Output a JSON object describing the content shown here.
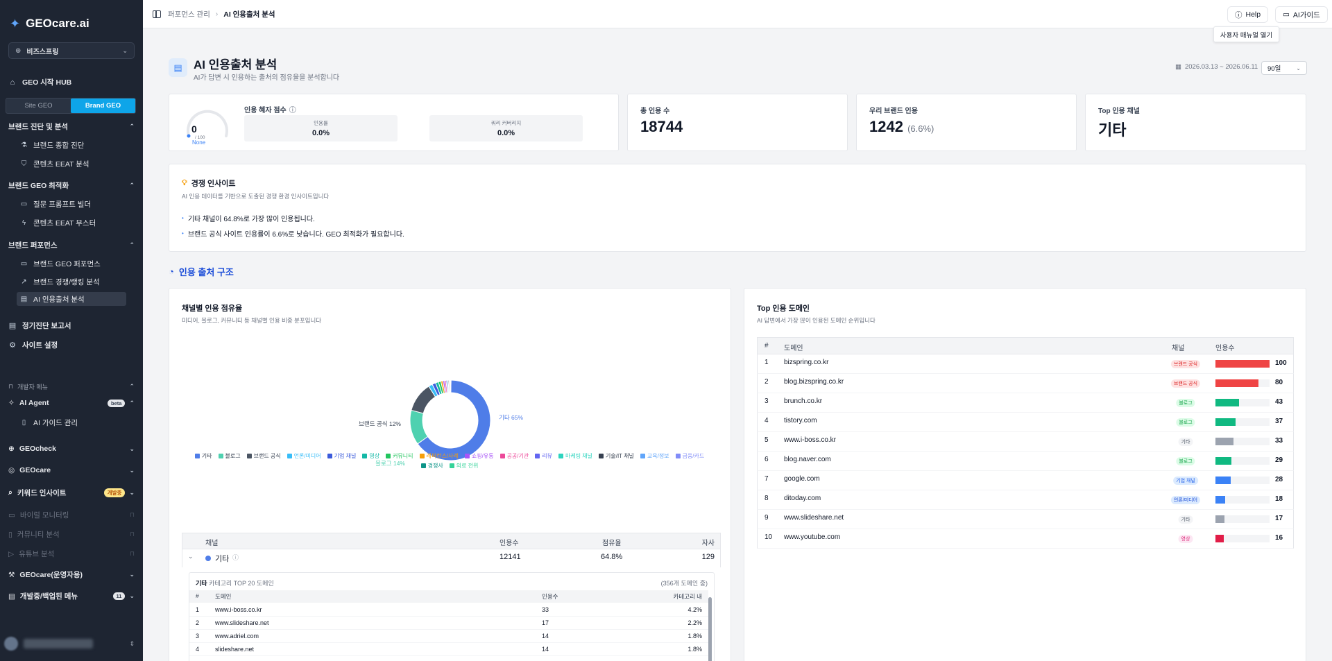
{
  "sidebar": {
    "brand": "GEOcare.ai",
    "workspace": "비즈스프링",
    "hub": "GEO 시작 HUB",
    "toggle": [
      "Site GEO",
      "Brand GEO"
    ],
    "sec1": {
      "title": "브랜드 진단 및 분석",
      "items": [
        "브랜드 종합 진단",
        "콘텐츠 EEAT 분석"
      ]
    },
    "sec2": {
      "title": "브랜드 GEO 최적화",
      "items": [
        "질문 프롬프트 빌더",
        "콘텐츠 EEAT 부스터"
      ]
    },
    "sec3": {
      "title": "브랜드 퍼포먼스",
      "items": [
        "브랜드 GEO 퍼포먼스",
        "브랜드 경쟁/랭킹 분석",
        "AI 인용출처 분석"
      ]
    },
    "report": "정기진단 보고서",
    "settings": "사이트 설정",
    "dev_menu": "개발자 메뉴",
    "ai_agent": "AI Agent",
    "ai_agent_badge": "beta",
    "ai_guide": "AI 가이드 관리",
    "geocheck": "GEOcheck",
    "geocare": "GEOcare",
    "keyword": "키워드 인사이트",
    "keyword_badge": "개발중",
    "viral": "바이럴 모니터링",
    "community": "커뮤니티 분석",
    "youtube": "유튜브 분석",
    "geocare_ops": "GEOcare(운영자용)",
    "hidden_menu": "개발중/백업된 메뉴",
    "hidden_count": "11"
  },
  "topbar": {
    "crumb_parent": "퍼포먼스 관리",
    "crumb_current": "AI 인용출처 분석",
    "help": "Help",
    "guide": "AI가이드",
    "tooltip": "사용자 매뉴얼 열기"
  },
  "page": {
    "title": "AI 인용출처 분석",
    "subtitle": "AI가 답변 시 인용하는 출처의 점유율을 분석합니다",
    "date_range": "2026.03.13 ~ 2026.06.11",
    "period": "90일"
  },
  "score": {
    "title": "인용 혜자 점수",
    "value": "0",
    "denom": "/ 100",
    "grade": "None",
    "boxes": [
      {
        "label": "인용률",
        "value": "0.0%"
      },
      {
        "label": "쿼리 커버리지",
        "value": "0.0%"
      }
    ]
  },
  "stats": {
    "total_label": "총 인용 수",
    "total_value": "18744",
    "brand_label": "우리 브랜드 인용",
    "brand_value": "1242",
    "brand_pct": "(6.6%)",
    "top_label": "Top 인용 채널",
    "top_value": "기타"
  },
  "insight": {
    "title": "경쟁 인사이트",
    "subtitle": "AI 인용 데이터를 기반으로 도출된 경쟁 환경 인사이트입니다",
    "lines": [
      "기타 채널이 64.8%로 가장 많이 인용됩니다.",
      "브랜드 공식 사이트 인용률이 6.6%로 낮습니다. GEO 최적화가 필요합니다."
    ]
  },
  "section_title": "인용 출처 구조",
  "chart_data": {
    "type": "pie",
    "title": "채널별 인용 점유율",
    "subtitle": "미디어, 블로그, 커뮤니티 등 채널별 인용 비중 분포입니다",
    "slices": [
      {
        "name": "기타",
        "value": 64.8,
        "color": "#4f7de8"
      },
      {
        "name": "블로그",
        "value": 14,
        "color": "#4fd1b0"
      },
      {
        "name": "브랜드 공식",
        "value": 12,
        "color": "#4b5563"
      },
      {
        "name": "언론/미디어",
        "value": 1.6,
        "color": "#38bdf8"
      },
      {
        "name": "기업 채널",
        "value": 1.4,
        "color": "#3b5bdb"
      },
      {
        "name": "영상",
        "value": 1.2,
        "color": "#14b8a6"
      },
      {
        "name": "커뮤니티",
        "value": 1.0,
        "color": "#22c55e"
      },
      {
        "name": "레퍼런스/사례",
        "value": 0.8,
        "color": "#f59e0b"
      },
      {
        "name": "쇼핑/유통",
        "value": 0.7,
        "color": "#a855f7"
      },
      {
        "name": "공공/기관",
        "value": 0.6,
        "color": "#ec4899"
      },
      {
        "name": "리뷰",
        "value": 0.5,
        "color": "#6366f1"
      },
      {
        "name": "마케팅 채널",
        "value": 0.4,
        "color": "#2dd4bf"
      },
      {
        "name": "기술/IT 채널",
        "value": 0.4,
        "color": "#374151"
      },
      {
        "name": "교육/정보",
        "value": 0.3,
        "color": "#60a5fa"
      },
      {
        "name": "금융/카드",
        "value": 0.2,
        "color": "#818cf8"
      },
      {
        "name": "경쟁사",
        "value": 0.1,
        "color": "#0d9488"
      },
      {
        "name": "의료 전위",
        "value": 0.1,
        "color": "#34d399"
      }
    ],
    "labels": [
      {
        "text": "기타 65%"
      },
      {
        "text": "블로그 14%"
      },
      {
        "text": "브랜드 공식 12%"
      }
    ]
  },
  "channel_table": {
    "cols": [
      "채널",
      "인용수",
      "점유율",
      "자사"
    ],
    "row": {
      "name": "기타",
      "count": "12141",
      "share": "64.8%",
      "own": "129"
    },
    "sub": {
      "hd_bold": "기타",
      "hd_rest": "카테고리 TOP 20 도메인",
      "count": "(356개 도메인 중)",
      "cols": [
        "#",
        "도메인",
        "인용수",
        "카테고리 내"
      ],
      "rows": [
        {
          "n": "1",
          "d": "www.i-boss.co.kr",
          "c": "33",
          "p": "4.2%"
        },
        {
          "n": "2",
          "d": "www.slideshare.net",
          "c": "17",
          "p": "2.2%"
        },
        {
          "n": "3",
          "d": "www.adriel.com",
          "c": "14",
          "p": "1.8%"
        },
        {
          "n": "4",
          "d": "slideshare.net",
          "c": "14",
          "p": "1.8%"
        }
      ]
    }
  },
  "domains": {
    "title": "Top 인용 도메인",
    "subtitle": "AI 답변에서 가장 많이 인용된 도메인 순위입니다",
    "cols": [
      "#",
      "도메인",
      "채널",
      "인용수"
    ],
    "rows": [
      {
        "n": "1",
        "d": "bizspring.co.kr",
        "ch": "브랜드 공식",
        "v": 100,
        "vs": "100",
        "tbg": "#fee2e2",
        "tfg": "#dc2626",
        "bar": "#ef4444"
      },
      {
        "n": "2",
        "d": "blog.bizspring.co.kr",
        "ch": "브랜드 공식",
        "v": 80,
        "vs": "80",
        "tbg": "#fee2e2",
        "tfg": "#dc2626",
        "bar": "#ef4444"
      },
      {
        "n": "3",
        "d": "brunch.co.kr",
        "ch": "블로그",
        "v": 43,
        "vs": "43",
        "tbg": "#dcfce7",
        "tfg": "#16a34a",
        "bar": "#10b981"
      },
      {
        "n": "4",
        "d": "tistory.com",
        "ch": "블로그",
        "v": 37,
        "vs": "37",
        "tbg": "#dcfce7",
        "tfg": "#16a34a",
        "bar": "#10b981"
      },
      {
        "n": "5",
        "d": "www.i-boss.co.kr",
        "ch": "기타",
        "v": 33,
        "vs": "33",
        "tbg": "#f3f4f6",
        "tfg": "#4b5563",
        "bar": "#9ca3af"
      },
      {
        "n": "6",
        "d": "blog.naver.com",
        "ch": "블로그",
        "v": 29,
        "vs": "29",
        "tbg": "#dcfce7",
        "tfg": "#16a34a",
        "bar": "#10b981"
      },
      {
        "n": "7",
        "d": "google.com",
        "ch": "기업 채널",
        "v": 28,
        "vs": "28",
        "tbg": "#dbeafe",
        "tfg": "#2563eb",
        "bar": "#3b82f6"
      },
      {
        "n": "8",
        "d": "ditoday.com",
        "ch": "언론/미디어",
        "v": 18,
        "vs": "18",
        "tbg": "#dbeafe",
        "tfg": "#1d4ed8",
        "bar": "#3b82f6"
      },
      {
        "n": "9",
        "d": "www.slideshare.net",
        "ch": "기타",
        "v": 17,
        "vs": "17",
        "tbg": "#f3f4f6",
        "tfg": "#4b5563",
        "bar": "#9ca3af"
      },
      {
        "n": "10",
        "d": "www.youtube.com",
        "ch": "영상",
        "v": 16,
        "vs": "16",
        "tbg": "#fce7f3",
        "tfg": "#db2777",
        "bar": "#e11d48"
      }
    ]
  }
}
